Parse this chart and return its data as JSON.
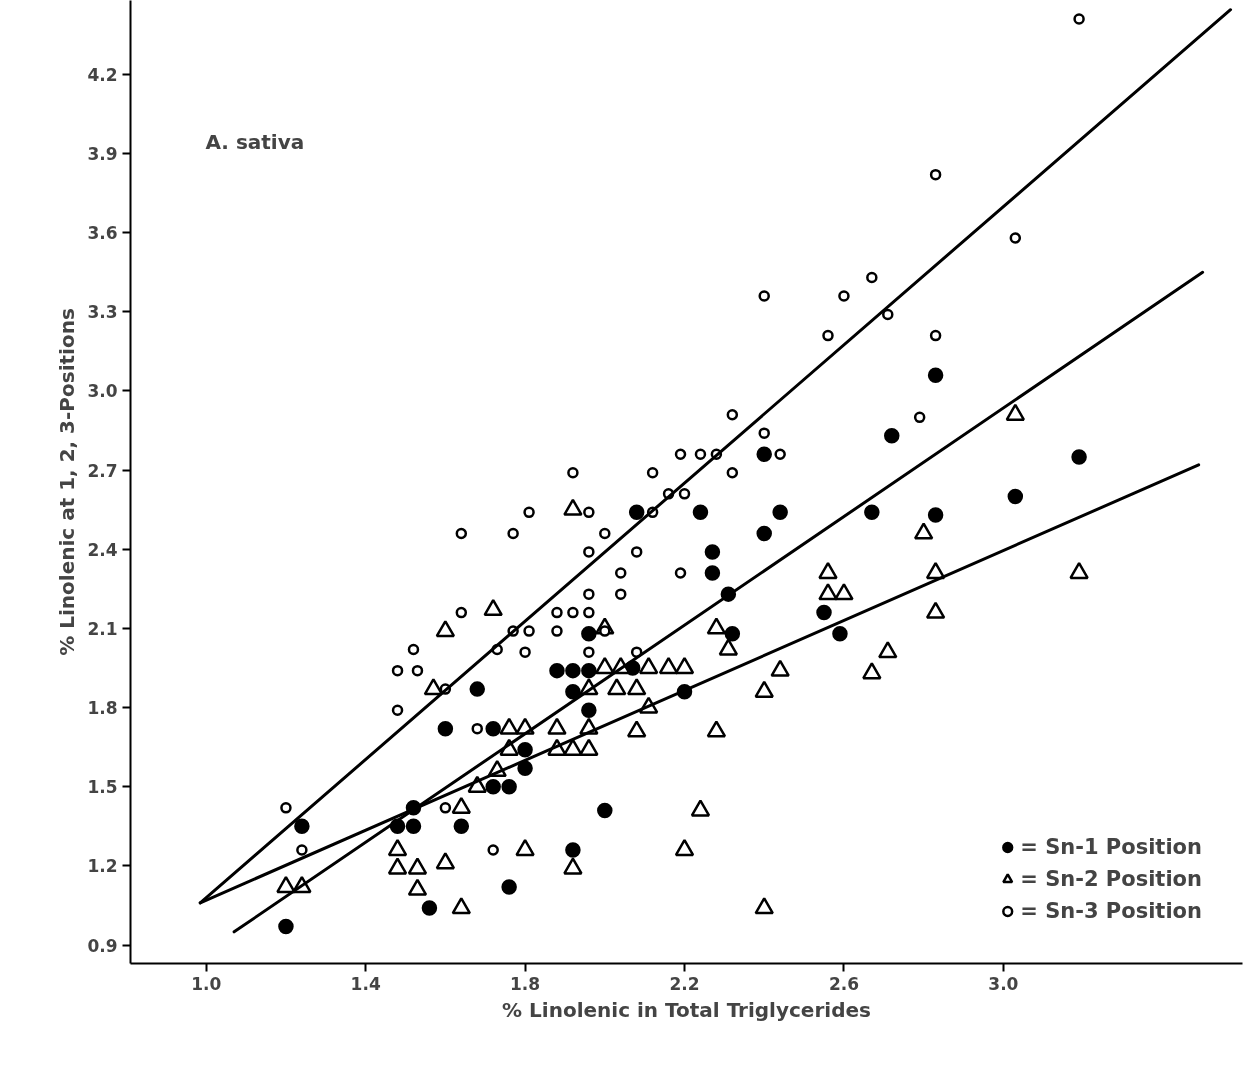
{
  "chart_data": {
    "type": "scatter",
    "xlabel": "% Linolenic in Total Triglycerides",
    "ylabel": "% Linolenic at 1, 2, 3-Positions",
    "annotations": [
      "A. sativa"
    ],
    "xlim": [
      0.81,
      3.6
    ],
    "ylim": [
      0.83,
      4.48
    ],
    "xticks": [
      {
        "value": 1.0,
        "label": "1.0"
      },
      {
        "value": 1.4,
        "label": "1.4"
      },
      {
        "value": 1.8,
        "label": "1.8"
      },
      {
        "value": 2.2,
        "label": "2.2"
      },
      {
        "value": 2.6,
        "label": "2.6"
      },
      {
        "value": 3.0,
        "label": "3.0"
      }
    ],
    "yticks": [
      {
        "value": 0.9,
        "label": "0.9"
      },
      {
        "value": 1.2,
        "label": "1.2"
      },
      {
        "value": 1.5,
        "label": "1.5"
      },
      {
        "value": 1.8,
        "label": "1.8"
      },
      {
        "value": 2.1,
        "label": "2.1"
      },
      {
        "value": 2.4,
        "label": "2.4"
      },
      {
        "value": 2.7,
        "label": "2.7"
      },
      {
        "value": 3.0,
        "label": "3.0"
      },
      {
        "value": 3.3,
        "label": "3.3"
      },
      {
        "value": 3.6,
        "label": "3.6"
      },
      {
        "value": 3.9,
        "label": "3.9"
      },
      {
        "value": 4.2,
        "label": "4.2"
      }
    ],
    "grid": false,
    "legend": "bottom right",
    "series": [
      {
        "name": "= Sn-1 Position",
        "color": "#000000",
        "marker": "circle",
        "x": [
          1.2,
          1.24,
          1.48,
          1.52,
          1.52,
          1.56,
          1.64,
          1.6,
          1.68,
          1.72,
          1.72,
          1.76,
          1.76,
          1.8,
          1.8,
          1.88,
          1.92,
          1.96,
          1.96,
          1.92,
          1.96,
          2.0,
          1.92,
          2.07,
          2.08,
          2.2,
          2.24,
          2.27,
          2.27,
          2.31,
          2.32,
          2.4,
          2.44,
          2.4,
          2.55,
          2.59,
          2.67,
          2.72,
          2.83,
          2.83,
          3.03,
          3.19
        ],
        "values": [
          0.97,
          1.35,
          1.35,
          1.35,
          1.42,
          1.04,
          1.35,
          1.72,
          1.87,
          1.72,
          1.5,
          1.5,
          1.12,
          1.64,
          1.57,
          1.94,
          1.94,
          1.94,
          2.08,
          1.86,
          1.79,
          1.41,
          1.26,
          1.95,
          2.54,
          1.86,
          2.54,
          2.31,
          2.39,
          2.23,
          2.08,
          2.76,
          2.54,
          2.46,
          2.16,
          2.08,
          2.54,
          2.83,
          2.53,
          3.06,
          2.6,
          2.75
        ]
      },
      {
        "name": "= Sn-2 Position",
        "color": "#000000",
        "marker": "triangle",
        "x": [
          1.2,
          1.24,
          1.48,
          1.48,
          1.53,
          1.53,
          1.6,
          1.64,
          1.64,
          1.57,
          1.6,
          1.72,
          1.68,
          1.73,
          1.76,
          1.76,
          1.8,
          1.8,
          1.88,
          1.88,
          1.92,
          1.96,
          1.96,
          1.92,
          1.92,
          1.96,
          2.0,
          2.0,
          2.03,
          2.04,
          2.08,
          2.08,
          2.11,
          2.11,
          2.16,
          2.2,
          2.2,
          2.24,
          2.28,
          2.28,
          2.31,
          2.4,
          2.4,
          2.44,
          2.56,
          2.56,
          2.6,
          2.67,
          2.71,
          2.8,
          2.83,
          2.83,
          3.03,
          3.19
        ],
        "values": [
          1.12,
          1.12,
          1.26,
          1.19,
          1.19,
          1.11,
          1.21,
          1.04,
          1.42,
          1.87,
          2.09,
          2.17,
          1.5,
          1.56,
          1.64,
          1.72,
          1.72,
          1.26,
          1.64,
          1.72,
          1.64,
          1.64,
          1.72,
          2.55,
          1.19,
          1.87,
          1.95,
          2.1,
          1.87,
          1.95,
          1.87,
          1.71,
          1.8,
          1.95,
          1.95,
          1.95,
          1.26,
          1.41,
          2.1,
          1.71,
          2.02,
          1.86,
          1.04,
          1.94,
          2.31,
          2.23,
          2.23,
          1.93,
          2.01,
          2.46,
          2.31,
          2.16,
          2.91,
          2.31
        ]
      },
      {
        "name": "= Sn-3 Position",
        "color": "#000000",
        "x": [
          1.2,
          1.24,
          1.48,
          1.48,
          1.53,
          1.52,
          1.6,
          1.6,
          1.64,
          1.64,
          1.68,
          1.72,
          1.73,
          1.77,
          1.77,
          1.81,
          1.8,
          1.81,
          1.88,
          1.88,
          1.92,
          1.92,
          1.96,
          1.96,
          1.96,
          1.96,
          1.96,
          2.0,
          2.0,
          2.04,
          2.04,
          2.08,
          2.08,
          2.12,
          2.12,
          2.16,
          2.19,
          2.19,
          2.2,
          2.24,
          2.28,
          2.32,
          2.32,
          2.4,
          2.44,
          2.4,
          2.56,
          2.6,
          2.67,
          2.71,
          2.83,
          2.83,
          2.79,
          3.03,
          3.19
        ],
        "values": [
          1.42,
          1.26,
          1.79,
          1.94,
          1.94,
          2.02,
          1.87,
          1.42,
          2.46,
          2.16,
          1.72,
          1.26,
          2.02,
          2.09,
          2.46,
          2.09,
          2.01,
          2.54,
          2.16,
          2.09,
          2.16,
          2.69,
          2.54,
          2.39,
          2.23,
          2.16,
          2.01,
          2.09,
          2.46,
          2.31,
          2.23,
          2.39,
          2.01,
          2.69,
          2.54,
          2.61,
          2.76,
          2.31,
          2.61,
          2.76,
          2.76,
          2.69,
          2.91,
          2.84,
          2.76,
          3.36,
          3.21,
          3.36,
          3.43,
          3.29,
          3.21,
          3.82,
          2.9,
          3.58,
          4.41
        ]
      },
      {
        "type": "line",
        "color": "#000000",
        "x": [
          0.985,
          3.57
        ],
        "values": [
          1.06,
          4.445
        ]
      },
      {
        "type": "line",
        "color": "#000000",
        "x": [
          1.07,
          3.5
        ],
        "values": [
          0.95,
          3.45
        ]
      },
      {
        "type": "line",
        "color": "#000000",
        "x": [
          0.985,
          3.49
        ],
        "values": [
          1.06,
          2.72
        ]
      }
    ]
  }
}
